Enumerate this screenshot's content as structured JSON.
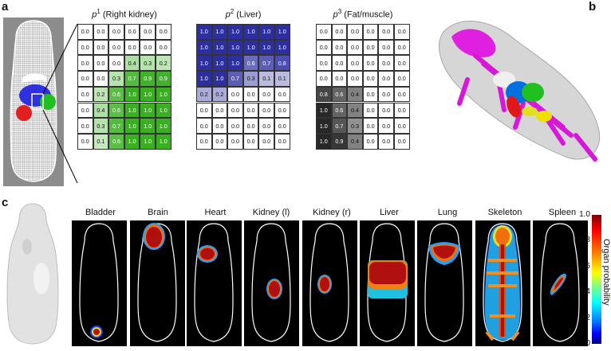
{
  "labels": {
    "a": "a",
    "b": "b",
    "c": "c"
  },
  "grids": [
    {
      "title_prefix": "p",
      "title_sup": "1",
      "title_suffix": " (Right kidney)",
      "color": "green",
      "rows": [
        [
          "0.0",
          "0.0",
          "0.0",
          "0.0",
          "0.0",
          "0.0"
        ],
        [
          "0.0",
          "0.0",
          "0.0",
          "0.0",
          "0.0",
          "0.0"
        ],
        [
          "0.0",
          "0.0",
          "0.0",
          "0.4",
          "0.3",
          "0.2"
        ],
        [
          "0.0",
          "0.0",
          "0.3",
          "0.7",
          "0.9",
          "0.9"
        ],
        [
          "0.0",
          "0.2",
          "0.6",
          "1.0",
          "1.0",
          "1.0"
        ],
        [
          "0.0",
          "0.4",
          "0.6",
          "1.0",
          "1.0",
          "1.0"
        ],
        [
          "0.0",
          "0.3",
          "0.7",
          "1.0",
          "1.0",
          "1.0"
        ],
        [
          "0.0",
          "0.1",
          "0.6",
          "1.0",
          "1.0",
          "1.0"
        ]
      ]
    },
    {
      "title_prefix": "p",
      "title_sup": "2",
      "title_suffix": " (Liver)",
      "color": "blue",
      "rows": [
        [
          "1.0",
          "1.0",
          "1.0",
          "1.0",
          "1.0",
          "1.0"
        ],
        [
          "1.0",
          "1.0",
          "1.0",
          "1.0",
          "1.0",
          "1.0"
        ],
        [
          "1.0",
          "1.0",
          "1.0",
          "0.6",
          "0.7",
          "0.8"
        ],
        [
          "1.0",
          "1.0",
          "0.7",
          "0.3",
          "0.1",
          "0.1"
        ],
        [
          "0.2",
          "0.2",
          "0.0",
          "0.0",
          "0.0",
          "0.0"
        ],
        [
          "0.0",
          "0.0",
          "0.0",
          "0.0",
          "0.0",
          "0.0"
        ],
        [
          "0.0",
          "0.0",
          "0.0",
          "0.0",
          "0.0",
          "0.0"
        ],
        [
          "0.0",
          "0.0",
          "0.0",
          "0.0",
          "0.0",
          "0.0"
        ]
      ]
    },
    {
      "title_prefix": "p",
      "title_sup": "3",
      "title_suffix": " (Fat/muscle)",
      "color": "gray",
      "rows": [
        [
          "0.0",
          "0.0",
          "0.0",
          "0.0",
          "0.0",
          "0.0"
        ],
        [
          "0.0",
          "0.0",
          "0.0",
          "0.0",
          "0.0",
          "0.0"
        ],
        [
          "0.0",
          "0.0",
          "0.0",
          "0.0",
          "0.0",
          "0.0"
        ],
        [
          "0.0",
          "0.0",
          "0.0",
          "0.0",
          "0.0",
          "0.0"
        ],
        [
          "0.8",
          "0.6",
          "0.4",
          "0.0",
          "0.0",
          "0.0"
        ],
        [
          "1.0",
          "0.6",
          "0.4",
          "0.0",
          "0.0",
          "0.0"
        ],
        [
          "1.0",
          "0.7",
          "0.3",
          "0.0",
          "0.0",
          "0.0"
        ],
        [
          "1.0",
          "0.9",
          "0.4",
          "0.0",
          "0.0",
          "0.0"
        ]
      ]
    }
  ],
  "organs": [
    "Bladder",
    "Brain",
    "Heart",
    "Kidney (l)",
    "Kidney (r)",
    "Liver",
    "Lung",
    "Skeleton",
    "Spleen"
  ],
  "colorbar": {
    "title": "Organ probability",
    "ticks": [
      "1.0",
      "0.8",
      "0.6",
      "0.4",
      "0.2",
      "0"
    ]
  },
  "colors": {
    "green": "#38b020",
    "blue": "#2d2ea0",
    "gray": "#303030",
    "panel_bg": "#000000"
  }
}
